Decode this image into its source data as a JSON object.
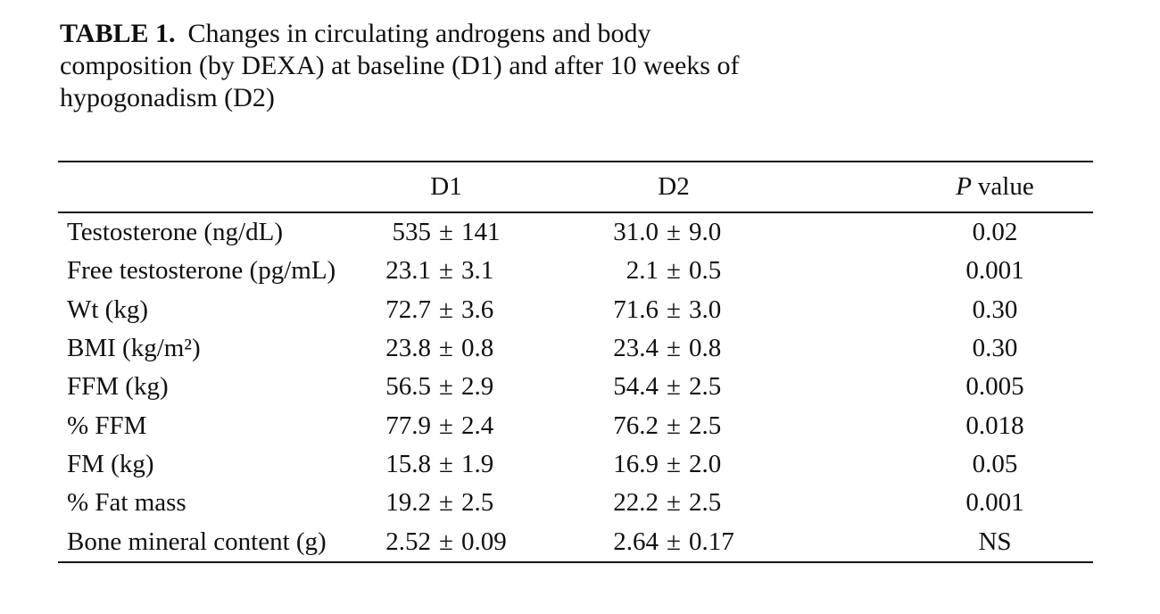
{
  "table": {
    "title": {
      "label": "TABLE 1.",
      "lines": [
        "Changes in circulating androgens and body",
        "composition (by DEXA) at baseline (D1) and after 10 weeks of",
        "hypogonadism (D2)"
      ]
    },
    "columns": {
      "d1": "D1",
      "d2": "D2",
      "p_italic": "P",
      "p_rest": "value"
    },
    "symbols": {
      "plus_minus": "±"
    },
    "rows": [
      {
        "label": "Testosterone (ng/dL)",
        "d1": "535 ± 141",
        "d2": "31.0 ± 9.0",
        "p": "0.02"
      },
      {
        "label": "Free testosterone (pg/mL)",
        "d1": "23.1 ± 3.1",
        "d2": "2.1 ± 0.5",
        "p": "0.001"
      },
      {
        "label": "Wt (kg)",
        "d1": "72.7 ± 3.6",
        "d2": "71.6 ± 3.0",
        "p": "0.30"
      },
      {
        "label": "BMI (kg/m²)",
        "d1": "23.8 ± 0.8",
        "d2": "23.4 ± 0.8",
        "p": "0.30"
      },
      {
        "label": "FFM (kg)",
        "d1": "56.5 ± 2.9",
        "d2": "54.4 ± 2.5",
        "p": "0.005"
      },
      {
        "label": "% FFM",
        "d1": "77.9 ± 2.4",
        "d2": "76.2 ± 2.5",
        "p": "0.018"
      },
      {
        "label": "FM (kg)",
        "d1": "15.8 ± 1.9",
        "d2": "16.9 ± 2.0",
        "p": "0.05"
      },
      {
        "label": "% Fat mass",
        "d1": "19.2 ± 2.5",
        "d2": "22.2 ± 2.5",
        "p": "0.001"
      },
      {
        "label": "Bone mineral content (g)",
        "d1": "2.52 ± 0.09",
        "d2": "2.64 ± 0.17",
        "p": "NS"
      }
    ]
  }
}
